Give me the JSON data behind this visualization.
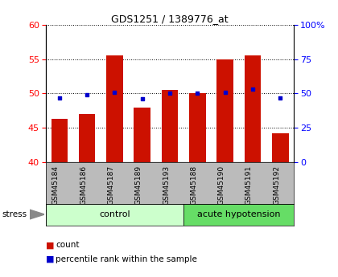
{
  "title": "GDS1251 / 1389776_at",
  "samples": [
    "GSM45184",
    "GSM45186",
    "GSM45187",
    "GSM45189",
    "GSM45193",
    "GSM45188",
    "GSM45190",
    "GSM45191",
    "GSM45192"
  ],
  "counts": [
    46.3,
    47.0,
    55.5,
    48.0,
    50.5,
    50.0,
    55.0,
    55.5,
    44.2
  ],
  "percentile_pct": [
    47,
    49,
    51,
    46,
    50,
    50,
    51,
    53,
    47
  ],
  "bar_color": "#cc1100",
  "dot_color": "#0000cc",
  "ylim_left": [
    40,
    60
  ],
  "ylim_right": [
    0,
    100
  ],
  "yticks_left": [
    40,
    45,
    50,
    55,
    60
  ],
  "yticks_right": [
    0,
    25,
    50,
    75,
    100
  ],
  "ytick_labels_right": [
    "0",
    "25",
    "50",
    "75",
    "100%"
  ],
  "ctrl_color": "#ccffcc",
  "acute_color": "#66dd66",
  "tick_bg": "#bbbbbb",
  "legend_count": "count",
  "legend_pct": "percentile rank within the sample",
  "n_control": 5,
  "n_acute": 4
}
